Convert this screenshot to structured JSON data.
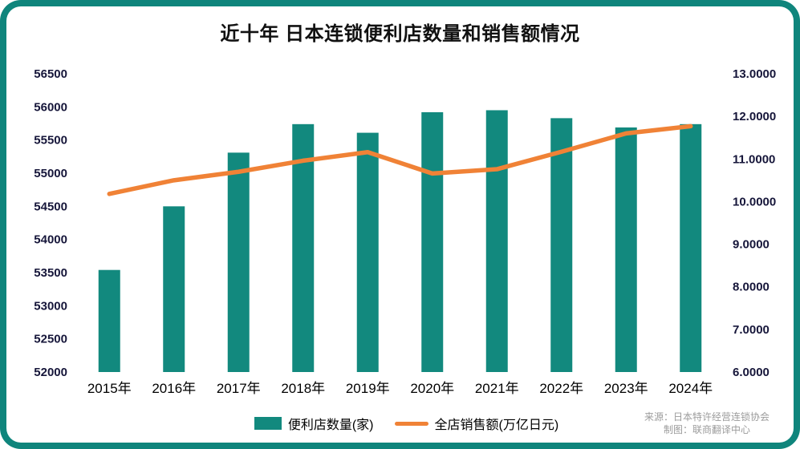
{
  "title": "近十年 日本连锁便利店数量和销售额情况",
  "source": {
    "line1": "来源：日本特许经营连锁协会",
    "line2": "制图：联商翻译中心"
  },
  "colors": {
    "frame_teal": "#0f857c",
    "bar_teal": "#12897e",
    "line_orange": "#f08236",
    "axis_text": "#16163a"
  },
  "chart_data": {
    "type": "bar",
    "title": "近十年 日本连锁便利店数量和销售额情况",
    "categories": [
      "2015年",
      "2016年",
      "2017年",
      "2018年",
      "2019年",
      "2020年",
      "2021年",
      "2022年",
      "2023年",
      "2024年"
    ],
    "series": [
      {
        "name": "便利店数量(家)",
        "type": "bar",
        "axis": "left",
        "color": "#12897e",
        "values": [
          53540,
          54500,
          55310,
          55740,
          55610,
          55920,
          55950,
          55830,
          55690,
          55740
        ]
      },
      {
        "name": "全店销售额(万亿日元)",
        "type": "line",
        "axis": "right",
        "color": "#f08236",
        "values": [
          10.18,
          10.5,
          10.7,
          10.96,
          11.16,
          10.66,
          10.76,
          11.17,
          11.6,
          11.77
        ]
      }
    ],
    "left_axis": {
      "min": 52000,
      "max": 56500,
      "ticks": [
        52000,
        52500,
        53000,
        53500,
        54000,
        54500,
        55000,
        55500,
        56000,
        56500
      ]
    },
    "right_axis": {
      "min": 6,
      "max": 13,
      "ticks": [
        6,
        7,
        8,
        9,
        10,
        11,
        12,
        13
      ],
      "decimals": 4
    },
    "grid": false,
    "legend_position": "bottom"
  }
}
